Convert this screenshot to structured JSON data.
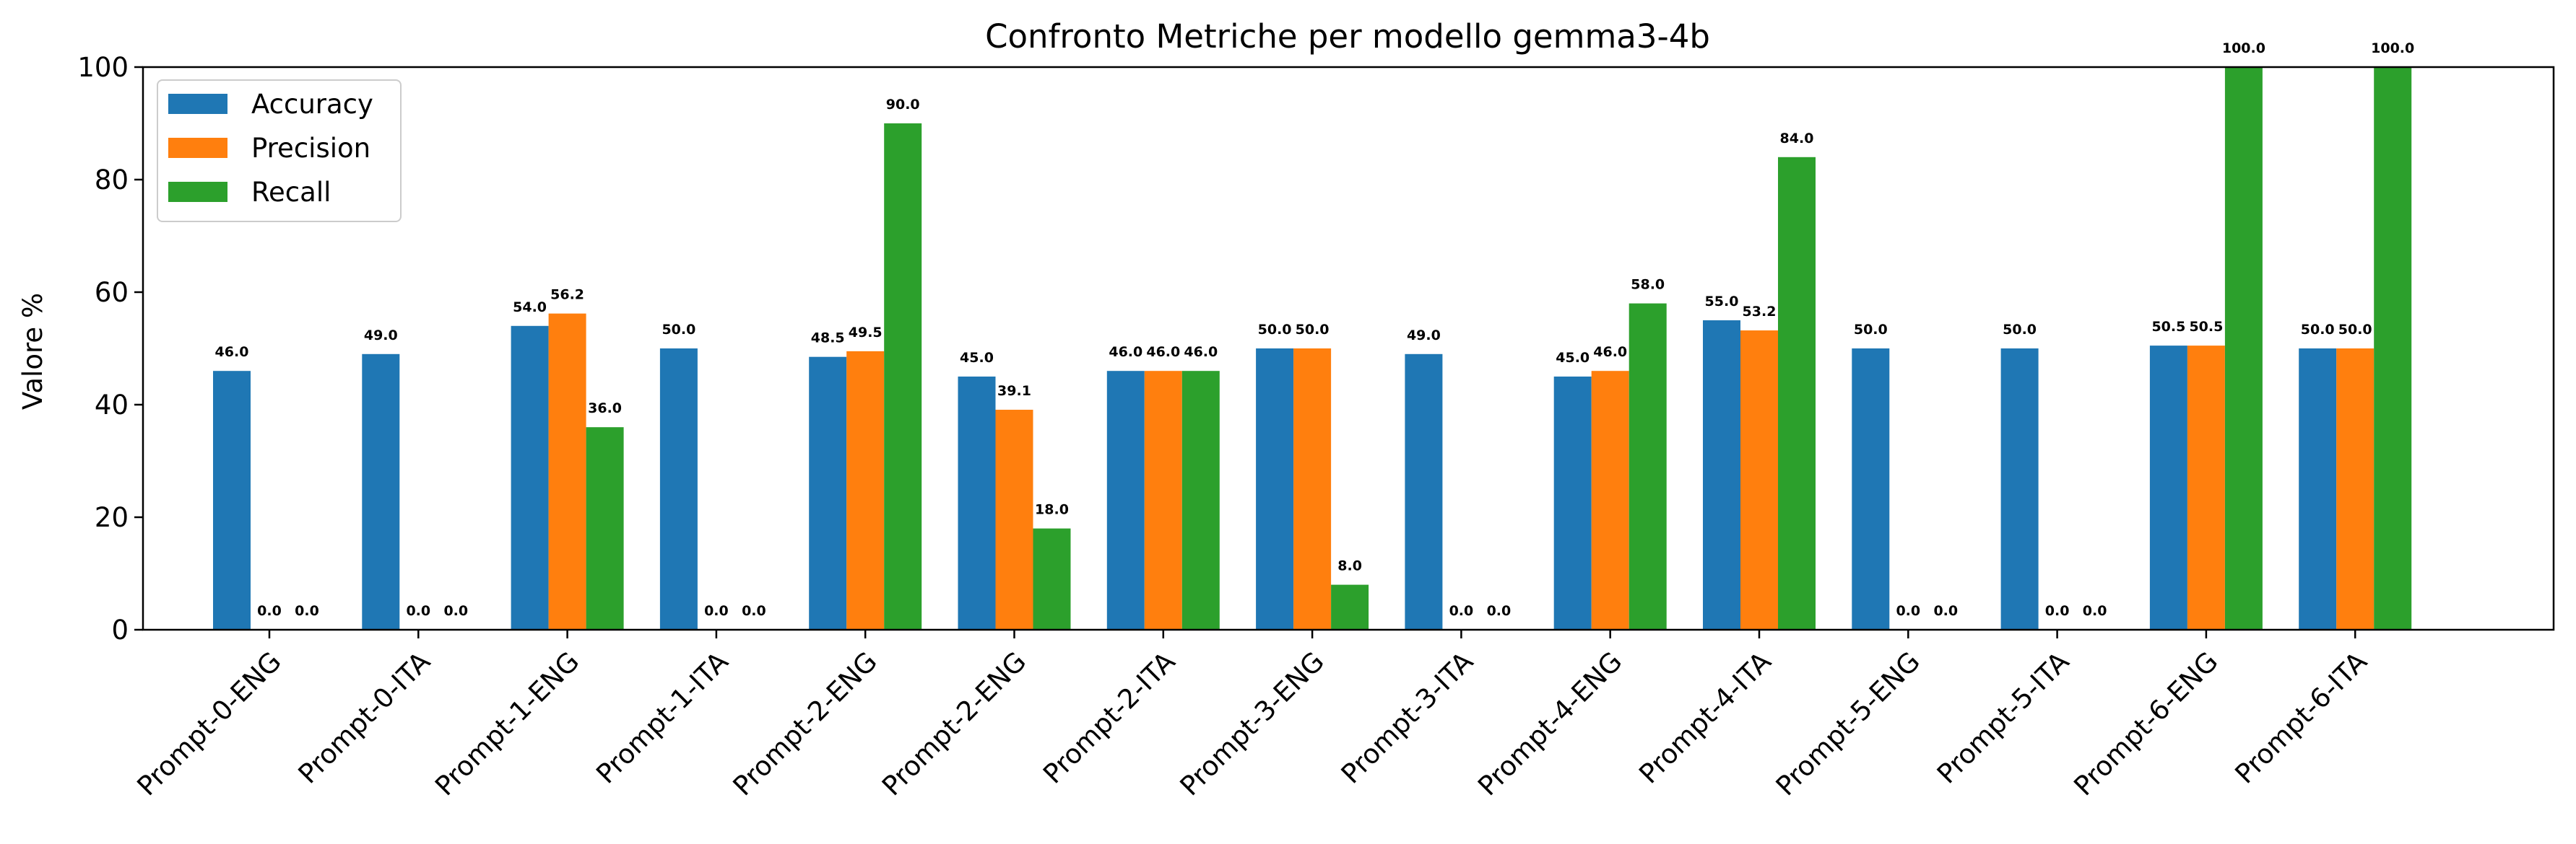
{
  "chart_data": {
    "type": "bar",
    "title": "Confronto Metriche per modello gemma3-4b",
    "xlabel": "",
    "ylabel": "Valore %",
    "ylim": [
      0,
      100
    ],
    "yticks": [
      0,
      20,
      40,
      60,
      80,
      100
    ],
    "grid": false,
    "legend_position": "top-left",
    "categories": [
      "Prompt-0-ENG",
      "Prompt-0-ITA",
      "Prompt-1-ENG",
      "Prompt-1-ITA",
      "Prompt-2-ENG",
      "Prompt-2-ENG",
      "Prompt-2-ITA",
      "Prompt-3-ENG",
      "Prompt-3-ITA",
      "Prompt-4-ENG",
      "Prompt-4-ITA",
      "Prompt-5-ENG",
      "Prompt-5-ITA",
      "Prompt-6-ENG",
      "Prompt-6-ITA"
    ],
    "series": [
      {
        "name": "Accuracy",
        "color": "#1f77b4",
        "values": [
          46.0,
          49.0,
          54.0,
          50.0,
          48.5,
          45.0,
          46.0,
          50.0,
          49.0,
          45.0,
          55.0,
          50.0,
          50.0,
          50.5,
          50.0
        ]
      },
      {
        "name": "Precision",
        "color": "#ff7f0e",
        "values": [
          0.0,
          0.0,
          56.2,
          0.0,
          49.5,
          39.1,
          46.0,
          50.0,
          0.0,
          46.0,
          53.2,
          0.0,
          0.0,
          50.5,
          50.0
        ]
      },
      {
        "name": "Recall",
        "color": "#2ca02c",
        "values": [
          0.0,
          0.0,
          36.0,
          0.0,
          90.0,
          18.0,
          46.0,
          8.0,
          0.0,
          58.0,
          84.0,
          0.0,
          0.0,
          100.0,
          100.0
        ]
      }
    ]
  }
}
